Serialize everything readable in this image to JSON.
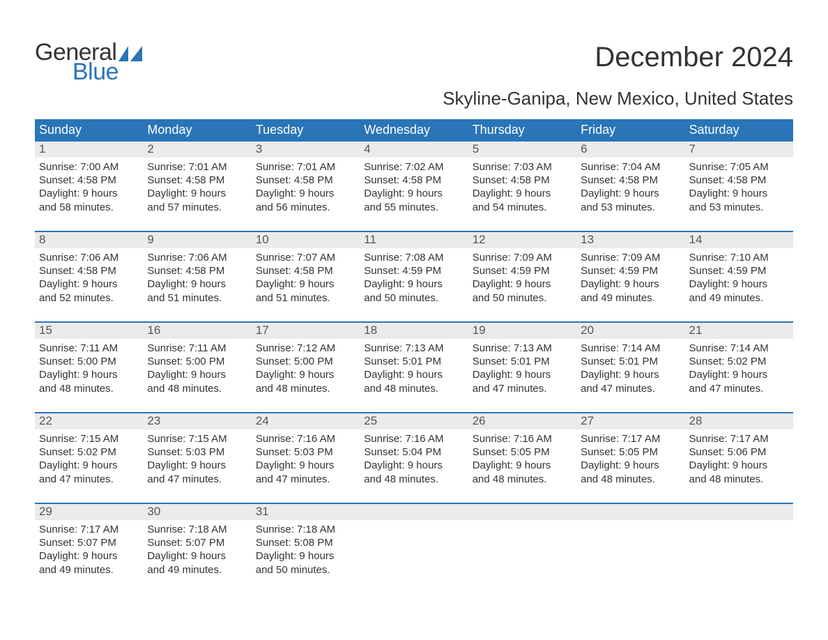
{
  "brand": {
    "word1": "General",
    "word2": "Blue",
    "logo_color": "#2a74b8"
  },
  "title": "December 2024",
  "location": "Skyline-Ganipa, New Mexico, United States",
  "colors": {
    "header_bg": "#2a74b8",
    "header_text": "#ffffff",
    "daynum_bg": "#ebebeb",
    "daynum_text": "#555555",
    "body_text": "#333333",
    "week_border": "#2a74b8"
  },
  "typography": {
    "title_fontsize": 40,
    "location_fontsize": 26,
    "weekday_fontsize": 18,
    "daynum_fontsize": 17,
    "content_fontsize": 15
  },
  "weekdays": [
    "Sunday",
    "Monday",
    "Tuesday",
    "Wednesday",
    "Thursday",
    "Friday",
    "Saturday"
  ],
  "weeks": [
    [
      {
        "num": "1",
        "sunrise": "Sunrise: 7:00 AM",
        "sunset": "Sunset: 4:58 PM",
        "day1": "Daylight: 9 hours",
        "day2": "and 58 minutes."
      },
      {
        "num": "2",
        "sunrise": "Sunrise: 7:01 AM",
        "sunset": "Sunset: 4:58 PM",
        "day1": "Daylight: 9 hours",
        "day2": "and 57 minutes."
      },
      {
        "num": "3",
        "sunrise": "Sunrise: 7:01 AM",
        "sunset": "Sunset: 4:58 PM",
        "day1": "Daylight: 9 hours",
        "day2": "and 56 minutes."
      },
      {
        "num": "4",
        "sunrise": "Sunrise: 7:02 AM",
        "sunset": "Sunset: 4:58 PM",
        "day1": "Daylight: 9 hours",
        "day2": "and 55 minutes."
      },
      {
        "num": "5",
        "sunrise": "Sunrise: 7:03 AM",
        "sunset": "Sunset: 4:58 PM",
        "day1": "Daylight: 9 hours",
        "day2": "and 54 minutes."
      },
      {
        "num": "6",
        "sunrise": "Sunrise: 7:04 AM",
        "sunset": "Sunset: 4:58 PM",
        "day1": "Daylight: 9 hours",
        "day2": "and 53 minutes."
      },
      {
        "num": "7",
        "sunrise": "Sunrise: 7:05 AM",
        "sunset": "Sunset: 4:58 PM",
        "day1": "Daylight: 9 hours",
        "day2": "and 53 minutes."
      }
    ],
    [
      {
        "num": "8",
        "sunrise": "Sunrise: 7:06 AM",
        "sunset": "Sunset: 4:58 PM",
        "day1": "Daylight: 9 hours",
        "day2": "and 52 minutes."
      },
      {
        "num": "9",
        "sunrise": "Sunrise: 7:06 AM",
        "sunset": "Sunset: 4:58 PM",
        "day1": "Daylight: 9 hours",
        "day2": "and 51 minutes."
      },
      {
        "num": "10",
        "sunrise": "Sunrise: 7:07 AM",
        "sunset": "Sunset: 4:58 PM",
        "day1": "Daylight: 9 hours",
        "day2": "and 51 minutes."
      },
      {
        "num": "11",
        "sunrise": "Sunrise: 7:08 AM",
        "sunset": "Sunset: 4:59 PM",
        "day1": "Daylight: 9 hours",
        "day2": "and 50 minutes."
      },
      {
        "num": "12",
        "sunrise": "Sunrise: 7:09 AM",
        "sunset": "Sunset: 4:59 PM",
        "day1": "Daylight: 9 hours",
        "day2": "and 50 minutes."
      },
      {
        "num": "13",
        "sunrise": "Sunrise: 7:09 AM",
        "sunset": "Sunset: 4:59 PM",
        "day1": "Daylight: 9 hours",
        "day2": "and 49 minutes."
      },
      {
        "num": "14",
        "sunrise": "Sunrise: 7:10 AM",
        "sunset": "Sunset: 4:59 PM",
        "day1": "Daylight: 9 hours",
        "day2": "and 49 minutes."
      }
    ],
    [
      {
        "num": "15",
        "sunrise": "Sunrise: 7:11 AM",
        "sunset": "Sunset: 5:00 PM",
        "day1": "Daylight: 9 hours",
        "day2": "and 48 minutes."
      },
      {
        "num": "16",
        "sunrise": "Sunrise: 7:11 AM",
        "sunset": "Sunset: 5:00 PM",
        "day1": "Daylight: 9 hours",
        "day2": "and 48 minutes."
      },
      {
        "num": "17",
        "sunrise": "Sunrise: 7:12 AM",
        "sunset": "Sunset: 5:00 PM",
        "day1": "Daylight: 9 hours",
        "day2": "and 48 minutes."
      },
      {
        "num": "18",
        "sunrise": "Sunrise: 7:13 AM",
        "sunset": "Sunset: 5:01 PM",
        "day1": "Daylight: 9 hours",
        "day2": "and 48 minutes."
      },
      {
        "num": "19",
        "sunrise": "Sunrise: 7:13 AM",
        "sunset": "Sunset: 5:01 PM",
        "day1": "Daylight: 9 hours",
        "day2": "and 47 minutes."
      },
      {
        "num": "20",
        "sunrise": "Sunrise: 7:14 AM",
        "sunset": "Sunset: 5:01 PM",
        "day1": "Daylight: 9 hours",
        "day2": "and 47 minutes."
      },
      {
        "num": "21",
        "sunrise": "Sunrise: 7:14 AM",
        "sunset": "Sunset: 5:02 PM",
        "day1": "Daylight: 9 hours",
        "day2": "and 47 minutes."
      }
    ],
    [
      {
        "num": "22",
        "sunrise": "Sunrise: 7:15 AM",
        "sunset": "Sunset: 5:02 PM",
        "day1": "Daylight: 9 hours",
        "day2": "and 47 minutes."
      },
      {
        "num": "23",
        "sunrise": "Sunrise: 7:15 AM",
        "sunset": "Sunset: 5:03 PM",
        "day1": "Daylight: 9 hours",
        "day2": "and 47 minutes."
      },
      {
        "num": "24",
        "sunrise": "Sunrise: 7:16 AM",
        "sunset": "Sunset: 5:03 PM",
        "day1": "Daylight: 9 hours",
        "day2": "and 47 minutes."
      },
      {
        "num": "25",
        "sunrise": "Sunrise: 7:16 AM",
        "sunset": "Sunset: 5:04 PM",
        "day1": "Daylight: 9 hours",
        "day2": "and 48 minutes."
      },
      {
        "num": "26",
        "sunrise": "Sunrise: 7:16 AM",
        "sunset": "Sunset: 5:05 PM",
        "day1": "Daylight: 9 hours",
        "day2": "and 48 minutes."
      },
      {
        "num": "27",
        "sunrise": "Sunrise: 7:17 AM",
        "sunset": "Sunset: 5:05 PM",
        "day1": "Daylight: 9 hours",
        "day2": "and 48 minutes."
      },
      {
        "num": "28",
        "sunrise": "Sunrise: 7:17 AM",
        "sunset": "Sunset: 5:06 PM",
        "day1": "Daylight: 9 hours",
        "day2": "and 48 minutes."
      }
    ],
    [
      {
        "num": "29",
        "sunrise": "Sunrise: 7:17 AM",
        "sunset": "Sunset: 5:07 PM",
        "day1": "Daylight: 9 hours",
        "day2": "and 49 minutes."
      },
      {
        "num": "30",
        "sunrise": "Sunrise: 7:18 AM",
        "sunset": "Sunset: 5:07 PM",
        "day1": "Daylight: 9 hours",
        "day2": "and 49 minutes."
      },
      {
        "num": "31",
        "sunrise": "Sunrise: 7:18 AM",
        "sunset": "Sunset: 5:08 PM",
        "day1": "Daylight: 9 hours",
        "day2": "and 50 minutes."
      },
      {
        "empty": true,
        "num": "."
      },
      {
        "empty": true,
        "num": "."
      },
      {
        "empty": true,
        "num": "."
      },
      {
        "empty": true,
        "num": "."
      }
    ]
  ]
}
